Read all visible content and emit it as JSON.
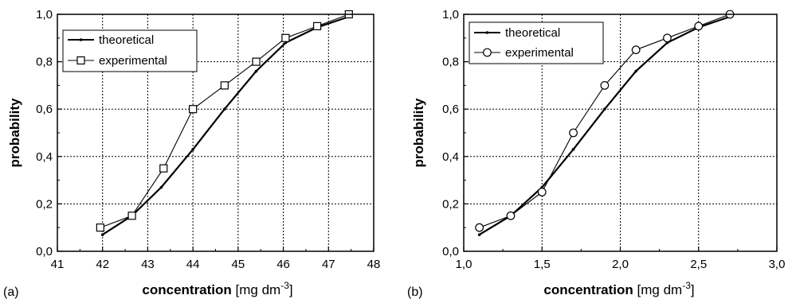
{
  "chart_data": [
    {
      "type": "line",
      "panel_label": "(a)",
      "xlabel_bold": "concentration",
      "xlabel_unit_prefix": " [mg dm",
      "xlabel_unit_exp": "-3",
      "xlabel_unit_suffix": "]",
      "ylabel": "probability",
      "xlim": [
        41,
        48
      ],
      "ylim": [
        0.0,
        1.0
      ],
      "xticks": [
        "41",
        "42",
        "43",
        "44",
        "45",
        "46",
        "47",
        "48"
      ],
      "yticks": [
        "0,0",
        "0,2",
        "0,4",
        "0,6",
        "0,8",
        "1,0"
      ],
      "grid": true,
      "legend_position": "top-left",
      "series": [
        {
          "name": "theoretical",
          "marker": "none",
          "x": [
            42.0,
            42.65,
            43.3,
            44.0,
            44.7,
            45.4,
            46.05,
            46.75,
            47.45
          ],
          "y": [
            0.07,
            0.15,
            0.27,
            0.43,
            0.6,
            0.76,
            0.88,
            0.945,
            0.99
          ]
        },
        {
          "name": "experimental",
          "marker": "square",
          "x": [
            41.95,
            42.65,
            43.35,
            44.0,
            44.7,
            45.4,
            46.05,
            46.75,
            47.45
          ],
          "y": [
            0.1,
            0.15,
            0.35,
            0.6,
            0.7,
            0.8,
            0.9,
            0.95,
            1.0
          ]
        }
      ]
    },
    {
      "type": "line",
      "panel_label": "(b)",
      "xlabel_bold": "concentration",
      "xlabel_unit_prefix": " [mg dm",
      "xlabel_unit_exp": "-3",
      "xlabel_unit_suffix": "]",
      "ylabel": "probability",
      "xlim": [
        1.0,
        3.0
      ],
      "ylim": [
        0.0,
        1.0
      ],
      "xticks": [
        "1,0",
        "1,5",
        "2,0",
        "2,5",
        "3,0"
      ],
      "yticks": [
        "0,0",
        "0,2",
        "0,4",
        "0,6",
        "0,8",
        "1,0"
      ],
      "grid": true,
      "legend_position": "top-left",
      "series": [
        {
          "name": "theoretical",
          "marker": "none",
          "x": [
            1.1,
            1.3,
            1.5,
            1.7,
            1.9,
            2.1,
            2.3,
            2.5,
            2.7
          ],
          "y": [
            0.07,
            0.15,
            0.27,
            0.43,
            0.6,
            0.76,
            0.88,
            0.945,
            0.99
          ]
        },
        {
          "name": "experimental",
          "marker": "circle",
          "x": [
            1.1,
            1.3,
            1.5,
            1.7,
            1.9,
            2.1,
            2.3,
            2.5,
            2.7
          ],
          "y": [
            0.1,
            0.15,
            0.25,
            0.5,
            0.7,
            0.85,
            0.9,
            0.95,
            1.0
          ]
        }
      ]
    }
  ]
}
